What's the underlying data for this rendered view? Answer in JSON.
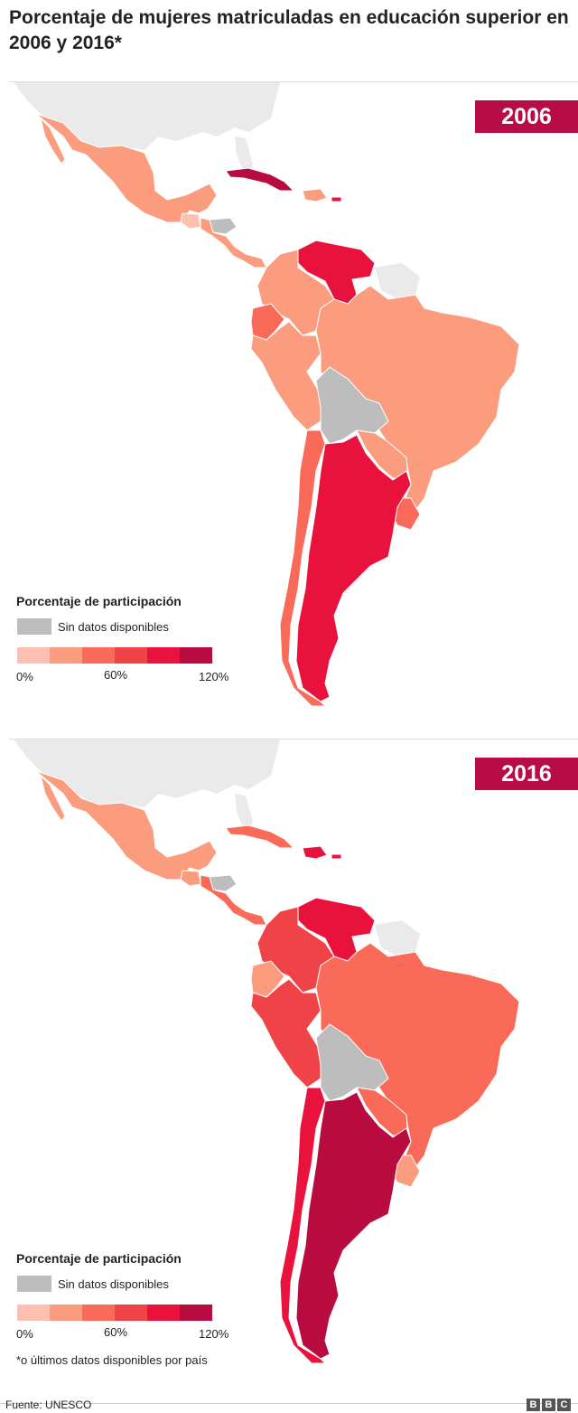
{
  "title": "Porcentaje de mujeres matriculadas en educación superior en 2006 y 2016*",
  "legend": {
    "title": "Porcentaje de participación",
    "no_data_label": "Sin datos disponibles",
    "tick_0": "0%",
    "tick_60": "60%",
    "tick_120": "120%",
    "scale_colors": [
      "#fcbfb0",
      "#fc9c7e",
      "#f96a58",
      "#ef4347",
      "#e8123c",
      "#b80b3f"
    ],
    "no_data_color": "#bdbdbd"
  },
  "panels": [
    {
      "year": "2006",
      "colors": {
        "mexico": "#fc9c7e",
        "cuba": "#b80b3f",
        "hispaniola": "#fc9c7e",
        "puerto_rico": "#e8123c",
        "guatemala": "#fcbfb0",
        "central_america": "#fc9c7e",
        "honduras": "#bdbdbd",
        "colombia": "#fc9c7e",
        "venezuela": "#e8123c",
        "ecuador": "#f96a58",
        "peru": "#fc9c7e",
        "brazil": "#fc9c7e",
        "bolivia": "#bdbdbd",
        "paraguay": "#fc9c7e",
        "chile": "#f96a58",
        "argentina": "#e8123c",
        "uruguay": "#f96a58"
      }
    },
    {
      "year": "2016",
      "colors": {
        "mexico": "#fc9c7e",
        "cuba": "#f96a58",
        "hispaniola": "#e8123c",
        "puerto_rico": "#e8123c",
        "guatemala": "#fc9c7e",
        "central_america": "#f96a58",
        "honduras": "#bdbdbd",
        "colombia": "#ef4347",
        "venezuela": "#e8123c",
        "ecuador": "#fc9c7e",
        "peru": "#ef4347",
        "brazil": "#f96a58",
        "bolivia": "#bdbdbd",
        "paraguay": "#f96a58",
        "chile": "#e8123c",
        "argentina": "#b80b3f",
        "uruguay": "#fc9c7e"
      }
    }
  ],
  "footnote": "*o últimos datos disponibles por país",
  "source": "Fuente: UNESCO",
  "brand": [
    "B",
    "B",
    "C"
  ]
}
